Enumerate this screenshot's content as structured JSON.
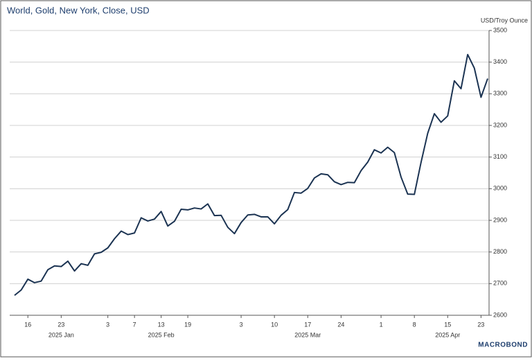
{
  "chart_data": {
    "type": "line",
    "title": "World, Gold, New York, Close, USD",
    "y_axis_label": "USD/Troy Ounce",
    "source": "MACROBOND",
    "x": [
      "2025-01-14",
      "2025-01-15",
      "2025-01-16",
      "2025-01-17",
      "2025-01-20",
      "2025-01-21",
      "2025-01-22",
      "2025-01-23",
      "2025-01-24",
      "2025-01-27",
      "2025-01-28",
      "2025-01-29",
      "2025-01-30",
      "2025-01-31",
      "2025-02-03",
      "2025-02-04",
      "2025-02-05",
      "2025-02-06",
      "2025-02-07",
      "2025-02-10",
      "2025-02-11",
      "2025-02-12",
      "2025-02-13",
      "2025-02-14",
      "2025-02-17",
      "2025-02-18",
      "2025-02-19",
      "2025-02-20",
      "2025-02-21",
      "2025-02-24",
      "2025-02-25",
      "2025-02-26",
      "2025-02-27",
      "2025-02-28",
      "2025-03-03",
      "2025-03-04",
      "2025-03-05",
      "2025-03-06",
      "2025-03-07",
      "2025-03-10",
      "2025-03-11",
      "2025-03-12",
      "2025-03-13",
      "2025-03-14",
      "2025-03-17",
      "2025-03-18",
      "2025-03-19",
      "2025-03-20",
      "2025-03-21",
      "2025-03-24",
      "2025-03-25",
      "2025-03-26",
      "2025-03-27",
      "2025-03-28",
      "2025-03-31",
      "2025-04-01",
      "2025-04-02",
      "2025-04-03",
      "2025-04-04",
      "2025-04-07",
      "2025-04-08",
      "2025-04-09",
      "2025-04-10",
      "2025-04-11",
      "2025-04-14",
      "2025-04-15",
      "2025-04-16",
      "2025-04-17",
      "2025-04-21",
      "2025-04-22",
      "2025-04-23",
      "2025-04-24"
    ],
    "series": [
      {
        "name": "Gold",
        "color": "#1b3352",
        "values": [
          2663,
          2680,
          2714,
          2703,
          2708,
          2744,
          2756,
          2754,
          2771,
          2740,
          2763,
          2758,
          2794,
          2799,
          2813,
          2842,
          2866,
          2855,
          2860,
          2908,
          2898,
          2904,
          2928,
          2882,
          2897,
          2935,
          2933,
          2939,
          2936,
          2952,
          2915,
          2916,
          2878,
          2858,
          2893,
          2917,
          2919,
          2911,
          2911,
          2889,
          2916,
          2934,
          2988,
          2986,
          3001,
          3034,
          3047,
          3044,
          3022,
          3013,
          3020,
          3019,
          3057,
          3084,
          3123,
          3113,
          3131,
          3114,
          3037,
          2983,
          2982,
          3083,
          3175,
          3237,
          3210,
          3230,
          3341,
          3316,
          3424,
          3381,
          3289,
          3348
        ]
      }
    ],
    "ylim": [
      2600,
      3500
    ],
    "yticks": [
      2600,
      2700,
      2800,
      2900,
      3000,
      3100,
      3200,
      3300,
      3400,
      3500
    ],
    "xticks": [
      {
        "value": "2025-01-16",
        "label": "16"
      },
      {
        "value": "2025-01-23",
        "label": "23"
      },
      {
        "value": "2025-02-03",
        "label": "3"
      },
      {
        "value": "2025-02-07",
        "label": "7"
      },
      {
        "value": "2025-02-13",
        "label": "13"
      },
      {
        "value": "2025-02-19",
        "label": "19"
      },
      {
        "value": "2025-03-03",
        "label": "3"
      },
      {
        "value": "2025-03-10",
        "label": "10"
      },
      {
        "value": "2025-03-17",
        "label": "17"
      },
      {
        "value": "2025-03-24",
        "label": "24"
      },
      {
        "value": "2025-04-01",
        "label": "1"
      },
      {
        "value": "2025-04-08",
        "label": "8"
      },
      {
        "value": "2025-04-15",
        "label": "15"
      },
      {
        "value": "2025-04-23",
        "label": "23"
      }
    ],
    "month_labels": [
      {
        "value": "2025-01-23",
        "label": "2025 Jan"
      },
      {
        "value": "2025-02-13",
        "label": "2025 Feb"
      },
      {
        "value": "2025-03-17",
        "label": "2025 Mar"
      },
      {
        "value": "2025-04-15",
        "label": "2025 Apr"
      }
    ],
    "grid": true
  }
}
